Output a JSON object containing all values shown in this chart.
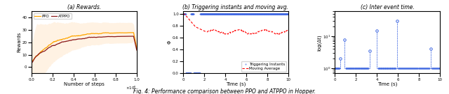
{
  "fig_width": 6.4,
  "fig_height": 1.35,
  "dpi": 100,
  "subplot_a": {
    "title": "(a) Rewards.",
    "xlabel": "Number of steps",
    "ylabel": "Rewards",
    "xlim": [
      0,
      1000000
    ],
    "ylim": [
      -5,
      45
    ],
    "ppo_color": "#FFA500",
    "atppo_color": "#8B1A1A",
    "fill_color": "#FFDAB0",
    "legend_labels": [
      "PPO",
      "ATPPO"
    ]
  },
  "subplot_b": {
    "title": "(b) Triggering instants and moving avg.",
    "xlabel": "Time (s)",
    "ylabel": "Φ",
    "xlim": [
      0,
      10
    ],
    "ylim": [
      0,
      1.05
    ],
    "xticks": [
      0,
      2,
      4,
      6,
      8,
      10
    ],
    "trigger_color": "#4169E1",
    "moving_avg_color": "#FF0000",
    "legend_labels": [
      "Triggering Instants",
      "Moving Average"
    ]
  },
  "subplot_c": {
    "title": "(c) Inter event time.",
    "xlabel": "Time (s)",
    "ylabel": "log(Δt)",
    "xlim": [
      0,
      10
    ],
    "xticks": [
      0,
      2,
      4,
      6,
      8,
      10
    ],
    "dot_color": "#4169E1",
    "line_color": "#4169E1"
  },
  "caption": "Fig. 4: Performance comparison between PPO and ATPPO in Hopper."
}
